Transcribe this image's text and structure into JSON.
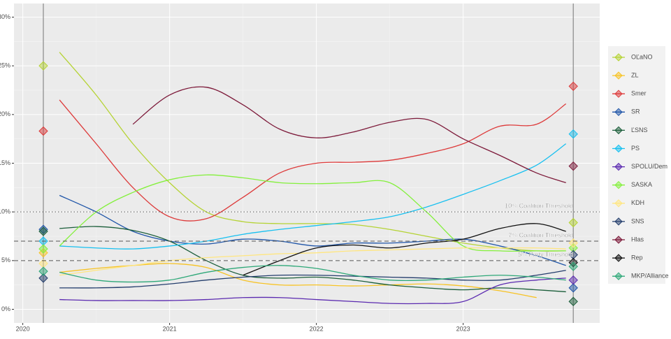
{
  "chart_data": {
    "type": "line",
    "x": [
      2020.25,
      2020.5,
      2020.75,
      2021.0,
      2021.25,
      2021.5,
      2021.75,
      2022.0,
      2022.25,
      2022.5,
      2022.75,
      2023.0,
      2023.25,
      2023.5,
      2023.7
    ],
    "result_x": [
      2020.14,
      2023.75
    ],
    "xlim": [
      2019.94,
      2023.93
    ],
    "xticks": [
      2020,
      2021,
      2022,
      2023
    ],
    "ylim": [
      -1.4,
      31.4
    ],
    "yticks": [
      {
        "value": 0,
        "label": "0%"
      },
      {
        "value": 5,
        "label": "5%"
      },
      {
        "value": 10,
        "label": "10%"
      },
      {
        "value": 15,
        "label": "15%"
      },
      {
        "value": 20,
        "label": "20%"
      },
      {
        "value": 25,
        "label": "25%"
      },
      {
        "value": 30,
        "label": "30%"
      }
    ],
    "grid": true,
    "hlines": [
      {
        "value": 10,
        "label": "10% Coalition Threshold",
        "style": "dotted"
      },
      {
        "value": 7,
        "label": "7% Coalition Threshold",
        "style": "dashed"
      },
      {
        "value": 5,
        "label": "5% Party Threshold",
        "style": "dashed"
      }
    ],
    "legend": "right",
    "series": [
      {
        "name": "OĽaNO",
        "color": "#b5d334",
        "values": [
          26.4,
          22,
          17,
          13,
          10,
          9,
          8.8,
          8.8,
          8.7,
          8.2,
          7.5,
          6.8,
          6.3,
          6,
          6
        ],
        "results": [
          25.0,
          8.9
        ]
      },
      {
        "name": "ZL",
        "color": "#f7c325",
        "values": [
          3.8,
          4.2,
          4.5,
          4.7,
          4.3,
          3.0,
          2.5,
          2.5,
          2.4,
          2.5,
          2.6,
          2.4,
          1.9,
          1.2,
          null
        ],
        "results": [
          5.8,
          null
        ]
      },
      {
        "name": "Smer",
        "color": "#dd3a3a",
        "values": [
          21.5,
          17,
          12.5,
          9.5,
          9.3,
          11.5,
          14,
          15,
          15.1,
          15.3,
          16,
          17,
          18.8,
          19,
          21.1
        ],
        "results": [
          18.3,
          22.9
        ]
      },
      {
        "name": "SR",
        "color": "#1f55a8",
        "values": [
          11.7,
          10,
          8,
          7,
          6.7,
          7.2,
          7.0,
          6.5,
          6.8,
          6.8,
          7,
          7.2,
          6.5,
          5.5,
          4.5
        ],
        "results": [
          8.2,
          2.2
        ]
      },
      {
        "name": "ĽSNS",
        "color": "#1b5e3a",
        "values": [
          8.3,
          8.5,
          8.1,
          7,
          5,
          3.5,
          3.2,
          3.3,
          3,
          2.5,
          2.2,
          2,
          2.2,
          2,
          1.8
        ],
        "results": [
          8.0,
          0.8
        ]
      },
      {
        "name": "PS",
        "color": "#17c0f0",
        "values": [
          6.5,
          6.3,
          6.2,
          6.5,
          7,
          7.7,
          8.2,
          8.6,
          9,
          9.5,
          10.5,
          11.8,
          13.2,
          14.8,
          17
        ],
        "results": [
          7.0,
          18.0
        ]
      },
      {
        "name": "SPOLU/Dem",
        "color": "#5b2ab0",
        "values": [
          1,
          0.9,
          0.9,
          0.9,
          1,
          1.2,
          1.2,
          1.0,
          0.8,
          0.6,
          0.6,
          0.8,
          2.5,
          3.0,
          3.2
        ],
        "results": [
          null,
          3.0
        ]
      },
      {
        "name": "SASKA",
        "color": "#84f03c",
        "values": [
          6.5,
          10,
          12,
          13.3,
          13.8,
          13.5,
          13,
          12.9,
          13,
          13,
          10,
          6.5,
          6,
          6,
          6
        ],
        "results": [
          6.2,
          6.3
        ]
      },
      {
        "name": "KDH",
        "color": "#ffe680",
        "values": [
          3.5,
          4.0,
          4.5,
          5,
          5.3,
          5.5,
          5.7,
          5.8,
          6,
          6.1,
          6.2,
          6.3,
          6.3,
          6.3,
          6.2
        ],
        "results": [
          4.7,
          6.8
        ]
      },
      {
        "name": "SNS",
        "color": "#233d6c",
        "values": [
          2.2,
          2.2,
          2.3,
          2.6,
          3,
          3.3,
          3.5,
          3.5,
          3.4,
          3.3,
          3.2,
          3.0,
          3.0,
          3.5,
          4
        ],
        "results": [
          3.2,
          5.6
        ]
      },
      {
        "name": "Hlas",
        "color": "#7d1a3a",
        "values": [
          null,
          null,
          19,
          22,
          22.8,
          21,
          18.5,
          17.6,
          18.2,
          19.2,
          19.5,
          17.5,
          15.8,
          14,
          13
        ],
        "results": [
          null,
          14.7
        ]
      },
      {
        "name": "Rep",
        "color": "#111111",
        "values": [
          null,
          null,
          null,
          null,
          null,
          3.5,
          5,
          6.3,
          6.6,
          6.3,
          6.8,
          7.2,
          8.3,
          8.8,
          8
        ],
        "results": [
          null,
          4.8
        ]
      },
      {
        "name": "MKP/Alliance",
        "color": "#2ea878",
        "values": [
          3.8,
          3,
          2.8,
          3,
          3.8,
          4.3,
          4.5,
          4.2,
          3.5,
          3,
          3,
          3.3,
          3.5,
          3.3,
          3.0
        ],
        "results": [
          3.9,
          4.4
        ]
      }
    ]
  }
}
